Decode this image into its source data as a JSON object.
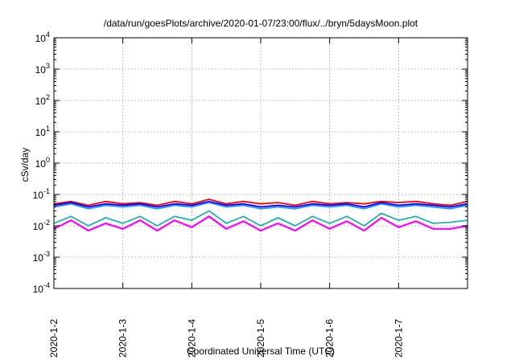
{
  "chart_data": {
    "type": "line",
    "title": "/data/run/goesPlots/archive/2020-01-07/23:00/flux/../bryn/5daysMoon.plot",
    "xlabel": "Coordinated Universal Time (UTC)",
    "ylabel": "cSv/day",
    "yscale": "log",
    "ylim": [
      0.0001,
      10000
    ],
    "xlim": [
      "2020-01-02T00:00",
      "2020-01-08T00:00"
    ],
    "grid": true,
    "xticks": [
      "2020-1-2",
      "2020-1-3",
      "2020-1-4",
      "2020-1-5",
      "2020-1-6",
      "2020-1-7"
    ],
    "yticks": [
      {
        "base": "10",
        "exp": "-4"
      },
      {
        "base": "10",
        "exp": "-3"
      },
      {
        "base": "10",
        "exp": "-2"
      },
      {
        "base": "10",
        "exp": "-1"
      },
      {
        "base": "10",
        "exp": "0"
      },
      {
        "base": "10",
        "exp": "1"
      },
      {
        "base": "10",
        "exp": "2"
      },
      {
        "base": "10",
        "exp": "3"
      },
      {
        "base": "10",
        "exp": "4"
      }
    ],
    "x": [
      "2020-01-02T00:00",
      "2020-01-02T06:00",
      "2020-01-02T12:00",
      "2020-01-02T18:00",
      "2020-01-03T00:00",
      "2020-01-03T06:00",
      "2020-01-03T12:00",
      "2020-01-03T18:00",
      "2020-01-04T00:00",
      "2020-01-04T06:00",
      "2020-01-04T12:00",
      "2020-01-04T18:00",
      "2020-01-05T00:00",
      "2020-01-05T06:00",
      "2020-01-05T12:00",
      "2020-01-05T18:00",
      "2020-01-06T00:00",
      "2020-01-06T06:00",
      "2020-01-06T12:00",
      "2020-01-06T18:00",
      "2020-01-07T00:00",
      "2020-01-07T06:00",
      "2020-01-07T12:00",
      "2020-01-07T18:00",
      "2020-01-08T00:00"
    ],
    "series": [
      {
        "color": "#ff0000",
        "values": [
          0.05,
          0.06,
          0.045,
          0.06,
          0.05,
          0.055,
          0.045,
          0.06,
          0.05,
          0.07,
          0.05,
          0.06,
          0.05,
          0.055,
          0.045,
          0.06,
          0.05,
          0.055,
          0.05,
          0.06,
          0.055,
          0.06,
          0.05,
          0.045,
          0.06
        ]
      },
      {
        "color": "#0000ff",
        "values": [
          0.045,
          0.055,
          0.04,
          0.05,
          0.045,
          0.05,
          0.04,
          0.05,
          0.045,
          0.06,
          0.045,
          0.05,
          0.04,
          0.045,
          0.04,
          0.05,
          0.045,
          0.05,
          0.04,
          0.055,
          0.045,
          0.05,
          0.045,
          0.04,
          0.05
        ]
      },
      {
        "color": "#1e90ff",
        "values": [
          0.04,
          0.05,
          0.035,
          0.045,
          0.04,
          0.045,
          0.035,
          0.045,
          0.04,
          0.055,
          0.04,
          0.045,
          0.035,
          0.04,
          0.035,
          0.045,
          0.04,
          0.045,
          0.035,
          0.05,
          0.04,
          0.045,
          0.04,
          0.035,
          0.045
        ]
      },
      {
        "color": "#20b2aa",
        "values": [
          0.012,
          0.02,
          0.01,
          0.018,
          0.012,
          0.02,
          0.01,
          0.02,
          0.015,
          0.03,
          0.012,
          0.02,
          0.01,
          0.018,
          0.01,
          0.02,
          0.012,
          0.02,
          0.01,
          0.025,
          0.015,
          0.02,
          0.012,
          0.013,
          0.015
        ]
      },
      {
        "color": "#ff00ff",
        "values": [
          0.008,
          0.015,
          0.007,
          0.012,
          0.008,
          0.015,
          0.007,
          0.015,
          0.009,
          0.02,
          0.008,
          0.014,
          0.007,
          0.012,
          0.007,
          0.015,
          0.008,
          0.014,
          0.007,
          0.018,
          0.009,
          0.014,
          0.008,
          0.008,
          0.01
        ]
      }
    ]
  }
}
